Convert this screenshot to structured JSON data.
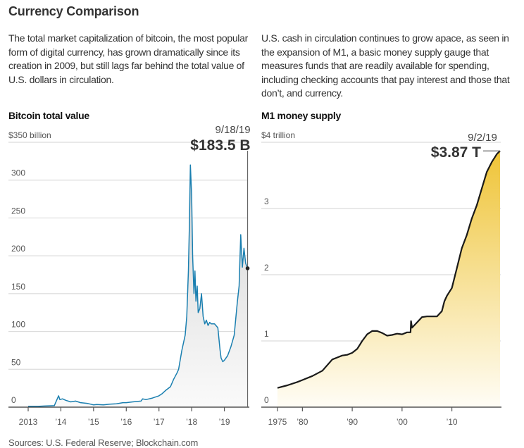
{
  "title": "Currency Comparison",
  "left_description": "The total market capitalization of bitcoin, the most popular form of digital currency, has grown dramatically since its creation in 2009, but still lags far behind the total value of U.S. dollars in circulation.",
  "right_description": "U.S. cash in circulation continues to grow apace, as seen in the expansion of M1, a basic money supply gauge that measures funds that are readily available for spending, including checking accounts that pay interest and those that don’t, and currency.",
  "sources": "Sources: U.S. Federal Reserve; Blockchain.com",
  "colors": {
    "bitcoin_line": "#1a7fb0",
    "bitcoin_fill_top": "#d9d9d9",
    "m1_line": "#1a1a1a",
    "m1_fill_top": "#f0c846",
    "m1_fill_bottom": "#fffdf5",
    "grid": "#dddddd",
    "axis": "#333333"
  },
  "chart_data": [
    {
      "type": "area",
      "title": "Bitcoin total value",
      "unit_label": "$350 billion",
      "xlabel": "",
      "ylabel": "",
      "ylim": [
        0,
        350
      ],
      "xlim": [
        2013.0,
        2019.72
      ],
      "y_ticks": [
        0,
        50,
        100,
        150,
        200,
        250,
        300,
        350
      ],
      "y_tick_labels": [
        "0",
        "50",
        "100",
        "150",
        "200",
        "250",
        "300",
        "$350 billion"
      ],
      "x_ticks": [
        2013,
        2014,
        2015,
        2016,
        2017,
        2018,
        2019
      ],
      "x_tick_labels": [
        "2013",
        "’14",
        "’15",
        "’16",
        "’17",
        "’18",
        "’19"
      ],
      "grid": true,
      "annotation": {
        "date": "9/18/19",
        "value_label": "$183.5 B",
        "x": 2019.71,
        "y": 183.5
      },
      "series": [
        {
          "name": "Bitcoin market cap ($ billion)",
          "x": [
            2013.0,
            2013.3,
            2013.5,
            2013.8,
            2013.9,
            2013.93,
            2013.97,
            2014.05,
            2014.15,
            2014.3,
            2014.45,
            2014.6,
            2014.8,
            2015.0,
            2015.1,
            2015.3,
            2015.5,
            2015.7,
            2015.9,
            2016.0,
            2016.2,
            2016.45,
            2016.5,
            2016.6,
            2016.8,
            2017.0,
            2017.1,
            2017.2,
            2017.35,
            2017.45,
            2017.55,
            2017.6,
            2017.7,
            2017.8,
            2017.85,
            2017.9,
            2017.93,
            2017.96,
            2018.0,
            2018.03,
            2018.07,
            2018.1,
            2018.13,
            2018.17,
            2018.2,
            2018.25,
            2018.3,
            2018.35,
            2018.4,
            2018.45,
            2018.5,
            2018.55,
            2018.6,
            2018.7,
            2018.8,
            2018.87,
            2018.9,
            2018.95,
            2019.0,
            2019.1,
            2019.2,
            2019.3,
            2019.4,
            2019.45,
            2019.5,
            2019.55,
            2019.6,
            2019.65,
            2019.71
          ],
          "y": [
            1,
            1,
            1.5,
            2,
            12,
            15,
            10,
            11,
            9,
            7,
            8,
            6,
            5,
            3,
            3.5,
            3,
            4,
            4.5,
            6,
            6,
            7,
            8,
            11,
            10,
            12,
            15,
            18,
            22,
            27,
            37,
            45,
            50,
            75,
            95,
            120,
            180,
            240,
            320,
            280,
            200,
            150,
            180,
            140,
            160,
            125,
            130,
            150,
            120,
            110,
            115,
            108,
            112,
            110,
            110,
            105,
            75,
            65,
            60,
            62,
            68,
            80,
            95,
            140,
            160,
            228,
            185,
            210,
            190,
            183.5
          ]
        }
      ]
    },
    {
      "type": "area",
      "title": "M1 money supply",
      "unit_label": "$4 trillion",
      "xlabel": "",
      "ylabel": "",
      "ylim": [
        0,
        4
      ],
      "xlim": [
        1975.0,
        2019.67
      ],
      "y_ticks": [
        0,
        1,
        2,
        3,
        4
      ],
      "y_tick_labels": [
        "0",
        "1",
        "2",
        "3",
        "$4 trillion"
      ],
      "x_ticks": [
        1975,
        1980,
        1990,
        2000,
        2010
      ],
      "x_tick_labels": [
        "1975",
        "’80",
        "’90",
        "’00",
        "’10"
      ],
      "grid": true,
      "annotation": {
        "date": "9/2/19",
        "value_label": "$3.87 T",
        "x": 2019.67,
        "y": 3.87
      },
      "series": [
        {
          "name": "M1 money supply ($ trillion)",
          "x": [
            1975,
            1977,
            1979,
            1980,
            1982,
            1984,
            1986,
            1987,
            1988,
            1989,
            1990,
            1991,
            1992,
            1993,
            1994,
            1995,
            1996,
            1997,
            1998,
            1999,
            2000,
            2001,
            2001.7,
            2001.8,
            2002,
            2003,
            2004,
            2005,
            2006,
            2007,
            2008,
            2008.5,
            2009,
            2010,
            2011,
            2012,
            2013,
            2014,
            2015,
            2016,
            2017,
            2018,
            2019,
            2019.67
          ],
          "y": [
            0.29,
            0.33,
            0.38,
            0.41,
            0.47,
            0.55,
            0.72,
            0.75,
            0.78,
            0.79,
            0.82,
            0.88,
            1.0,
            1.1,
            1.15,
            1.15,
            1.12,
            1.08,
            1.09,
            1.11,
            1.1,
            1.13,
            1.13,
            1.3,
            1.2,
            1.28,
            1.36,
            1.37,
            1.37,
            1.37,
            1.45,
            1.6,
            1.68,
            1.8,
            2.1,
            2.4,
            2.6,
            2.85,
            3.05,
            3.3,
            3.55,
            3.7,
            3.82,
            3.87
          ]
        }
      ]
    }
  ]
}
